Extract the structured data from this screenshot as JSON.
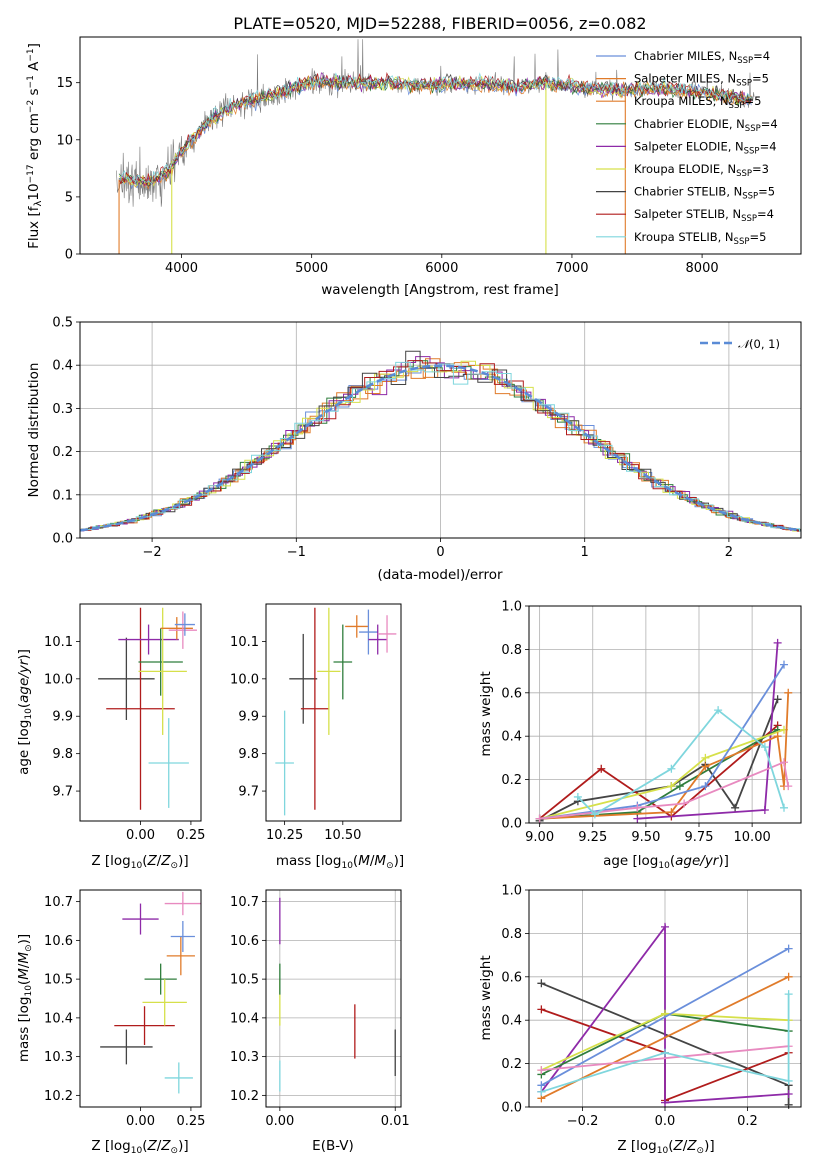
{
  "figure": {
    "title": "PLATE=0520, MJD=52288, FIBERID=0056, z=0.082"
  },
  "chart_data": [
    {
      "id": "spectrum",
      "type": "line",
      "title": "PLATE=0520, MJD=52288, FIBERID=0056, z=0.082",
      "xlabel": "wavelength [Angstrom, rest frame]",
      "ylabel": "Flux [f_λ 10^-17 erg cm^-2 s^-1 A^-1]",
      "xlim": [
        3220,
        8760
      ],
      "ylim": [
        0,
        19
      ],
      "xticks": [
        4000,
        5000,
        6000,
        7000,
        8000
      ],
      "yticks": [
        0,
        5,
        10,
        15
      ],
      "grid": false,
      "legend_position": "right",
      "legend": [
        {
          "name": "Chabrier MILES, N_SSP=4",
          "color": "#6a8fdb"
        },
        {
          "name": "Salpeter MILES, N_SSP=5",
          "color": "#e07b2a"
        },
        {
          "name": "Kroupa MILES, N_SSP=5",
          "color": "#e07b2a"
        },
        {
          "name": "Chabrier ELODIE, N_SSP=4",
          "color": "#2f7d3c"
        },
        {
          "name": "Salpeter ELODIE, N_SSP=4",
          "color": "#8e2aa8"
        },
        {
          "name": "Kroupa ELODIE, N_SSP=3",
          "color": "#d6e04a"
        },
        {
          "name": "Chabrier STELIB, N_SSP=5",
          "color": "#444444"
        },
        {
          "name": "Salpeter STELIB, N_SSP=4",
          "color": "#b01c1c"
        },
        {
          "name": "Kroupa STELIB, N_SSP=5",
          "color": "#7fd6dd"
        }
      ],
      "continuum": {
        "x": [
          3500,
          3600,
          3750,
          3900,
          4000,
          4100,
          4200,
          4300,
          4400,
          4500,
          4600,
          4700,
          4800,
          5000,
          5200,
          5400,
          5600,
          5800,
          6000,
          6200,
          6400,
          6600,
          6800,
          7000,
          7200,
          7400,
          7600,
          7800,
          8000,
          8200,
          8400
        ],
        "y": [
          6.5,
          6.5,
          6.3,
          7.2,
          9.0,
          10.2,
          11.6,
          12.4,
          13.0,
          13.3,
          13.6,
          14.0,
          14.3,
          15.1,
          15.0,
          15.0,
          15.0,
          14.8,
          14.8,
          14.9,
          14.9,
          14.6,
          15.0,
          14.7,
          14.4,
          14.3,
          14.5,
          14.4,
          14.2,
          13.8,
          13.4
        ]
      }
    },
    {
      "id": "residual-histogram",
      "type": "line",
      "xlabel": "(data-model)/error",
      "ylabel": "Normed distribution",
      "xlim": [
        -2.5,
        2.5
      ],
      "ylim": [
        0,
        0.5
      ],
      "xticks": [
        -2,
        -1,
        0,
        1,
        2
      ],
      "yticks": [
        0.0,
        0.1,
        0.2,
        0.3,
        0.4,
        0.5
      ],
      "grid": true,
      "legend": [
        {
          "name": "N(0,1)",
          "color": "#5a8bd6",
          "style": "dashed"
        }
      ],
      "legend_position": "top-right"
    },
    {
      "id": "age-vs-z",
      "type": "scatter",
      "xlabel": "Z [log10(Z/Z☉)]",
      "ylabel": "age [log10(age/yr)]",
      "xlim": [
        -0.3,
        0.3
      ],
      "ylim": [
        9.62,
        10.2
      ],
      "xticks": [
        0.0,
        0.25
      ],
      "yticks": [
        9.7,
        9.8,
        9.9,
        10.0,
        10.1
      ],
      "points": [
        {
          "x": -0.07,
          "y": 10.0,
          "xerr": 0.14,
          "yerr": 0.11,
          "color": "#444444"
        },
        {
          "x": 0.0,
          "y": 9.92,
          "xerr": 0.17,
          "yerr": 0.27,
          "color": "#b01c1c"
        },
        {
          "x": 0.04,
          "y": 10.105,
          "xerr": 0.15,
          "yerr": 0.04,
          "color": "#8e2aa8"
        },
        {
          "x": 0.1,
          "y": 10.045,
          "xerr": 0.11,
          "yerr": 0.09,
          "color": "#2f7d3c"
        },
        {
          "x": 0.11,
          "y": 10.02,
          "xerr": 0.12,
          "yerr": 0.17,
          "color": "#d6e04a"
        },
        {
          "x": 0.18,
          "y": 10.135,
          "xerr": 0.08,
          "yerr": 0.03,
          "color": "#e07b2a"
        },
        {
          "x": 0.21,
          "y": 10.13,
          "xerr": 0.07,
          "yerr": 0.05,
          "color": "#e88ac0"
        },
        {
          "x": 0.22,
          "y": 10.145,
          "xerr": 0.05,
          "yerr": 0.03,
          "color": "#6a8fdb"
        },
        {
          "x": 0.14,
          "y": 9.775,
          "xerr": 0.1,
          "yerr": 0.12,
          "color": "#7fd6dd"
        }
      ]
    },
    {
      "id": "age-vs-mass",
      "type": "scatter",
      "xlabel": "mass [log10(M/M☉)]",
      "ylabel": "",
      "xlim": [
        10.17,
        10.75
      ],
      "ylim": [
        9.62,
        10.2
      ],
      "xticks": [
        10.25,
        10.5
      ],
      "yticks": [
        9.7,
        9.8,
        9.9,
        10.0,
        10.1
      ],
      "points": [
        {
          "x": 10.33,
          "y": 10.0,
          "xerr": 0.06,
          "yerr": 0.12,
          "color": "#444444"
        },
        {
          "x": 10.38,
          "y": 9.92,
          "xerr": 0.06,
          "yerr": 0.27,
          "color": "#b01c1c"
        },
        {
          "x": 10.44,
          "y": 10.02,
          "xerr": 0.05,
          "yerr": 0.17,
          "color": "#d6e04a"
        },
        {
          "x": 10.5,
          "y": 10.045,
          "xerr": 0.04,
          "yerr": 0.1,
          "color": "#2f7d3c"
        },
        {
          "x": 10.25,
          "y": 9.775,
          "xerr": 0.04,
          "yerr": 0.14,
          "color": "#7fd6dd"
        },
        {
          "x": 10.56,
          "y": 10.14,
          "xerr": 0.05,
          "yerr": 0.03,
          "color": "#e07b2a"
        },
        {
          "x": 10.61,
          "y": 10.125,
          "xerr": 0.04,
          "yerr": 0.06,
          "color": "#6a8fdb"
        },
        {
          "x": 10.65,
          "y": 10.105,
          "xerr": 0.04,
          "yerr": 0.04,
          "color": "#8e2aa8"
        },
        {
          "x": 10.69,
          "y": 10.12,
          "xerr": 0.04,
          "yerr": 0.05,
          "color": "#e88ac0"
        }
      ]
    },
    {
      "id": "massweight-vs-age",
      "type": "line",
      "xlabel": "age [log10(age/yr)]",
      "ylabel": "mass weight",
      "xlim": [
        8.95,
        10.23
      ],
      "ylim": [
        0,
        1
      ],
      "xticks": [
        9.0,
        9.25,
        9.5,
        9.75,
        10.0
      ],
      "yticks": [
        0.0,
        0.2,
        0.4,
        0.6,
        0.8,
        1.0
      ],
      "grid": true,
      "series": [
        {
          "color": "#444444",
          "x": [
            9.0,
            9.18,
            9.62,
            9.78,
            9.92,
            10.12
          ],
          "y": [
            0.01,
            0.1,
            0.17,
            0.27,
            0.07,
            0.57
          ]
        },
        {
          "color": "#b01c1c",
          "x": [
            9.0,
            9.29,
            9.62,
            10.12
          ],
          "y": [
            0.02,
            0.25,
            0.03,
            0.45
          ]
        },
        {
          "color": "#8e2aa8",
          "x": [
            9.46,
            10.06,
            10.12
          ],
          "y": [
            0.02,
            0.06,
            0.83
          ]
        },
        {
          "color": "#2f7d3c",
          "x": [
            9.0,
            9.46,
            9.66,
            10.12
          ],
          "y": [
            0.02,
            0.05,
            0.17,
            0.43
          ]
        },
        {
          "color": "#d6e04a",
          "x": [
            9.0,
            9.62,
            9.78,
            10.15
          ],
          "y": [
            0.02,
            0.17,
            0.3,
            0.43
          ]
        },
        {
          "color": "#e07b2a",
          "x": [
            9.0,
            9.62,
            9.78,
            10.12,
            10.15,
            10.17
          ],
          "y": [
            0.02,
            0.05,
            0.26,
            0.4,
            0.17,
            0.6
          ]
        },
        {
          "color": "#6a8fdb",
          "x": [
            9.0,
            9.46,
            9.78,
            10.15
          ],
          "y": [
            0.02,
            0.08,
            0.17,
            0.73
          ]
        },
        {
          "color": "#e88ac0",
          "x": [
            9.0,
            9.46,
            9.68,
            10.15,
            10.17
          ],
          "y": [
            0.02,
            0.07,
            0.09,
            0.28,
            0.17
          ]
        },
        {
          "color": "#7fd6dd",
          "x": [
            9.18,
            9.26,
            9.62,
            9.84,
            10.06,
            10.15
          ],
          "y": [
            0.12,
            0.04,
            0.25,
            0.52,
            0.35,
            0.07
          ]
        }
      ]
    },
    {
      "id": "mass-vs-z",
      "type": "scatter",
      "xlabel": "Z [log10(Z/Z☉)]",
      "ylabel": "mass [log10(M/M☉)]",
      "xlim": [
        -0.3,
        0.3
      ],
      "ylim": [
        10.17,
        10.73
      ],
      "xticks": [
        0.0,
        0.25
      ],
      "yticks": [
        10.2,
        10.3,
        10.4,
        10.5,
        10.6,
        10.7
      ],
      "points": [
        {
          "x": -0.07,
          "y": 10.325,
          "xerr": 0.13,
          "yerr": 0.045,
          "color": "#444444"
        },
        {
          "x": 0.02,
          "y": 10.38,
          "xerr": 0.15,
          "yerr": 0.05,
          "color": "#b01c1c"
        },
        {
          "x": 0.0,
          "y": 10.655,
          "xerr": 0.09,
          "yerr": 0.04,
          "color": "#8e2aa8"
        },
        {
          "x": 0.1,
          "y": 10.5,
          "xerr": 0.08,
          "yerr": 0.04,
          "color": "#2f7d3c"
        },
        {
          "x": 0.12,
          "y": 10.44,
          "xerr": 0.11,
          "yerr": 0.06,
          "color": "#d6e04a"
        },
        {
          "x": 0.21,
          "y": 10.695,
          "xerr": 0.09,
          "yerr": 0.03,
          "color": "#e88ac0"
        },
        {
          "x": 0.2,
          "y": 10.56,
          "xerr": 0.07,
          "yerr": 0.05,
          "color": "#e07b2a"
        },
        {
          "x": 0.21,
          "y": 10.61,
          "xerr": 0.06,
          "yerr": 0.04,
          "color": "#6a8fdb"
        },
        {
          "x": 0.19,
          "y": 10.245,
          "xerr": 0.07,
          "yerr": 0.04,
          "color": "#7fd6dd"
        }
      ]
    },
    {
      "id": "mass-vs-ebv",
      "type": "scatter",
      "xlabel": "E(B-V)",
      "ylabel": "",
      "xlim": [
        -0.0012,
        0.0105
      ],
      "ylim": [
        10.17,
        10.73
      ],
      "xticks": [
        0.0,
        0.01
      ],
      "yticks": [
        10.2,
        10.3,
        10.4,
        10.5,
        10.6,
        10.7
      ],
      "grid": true,
      "points": [
        {
          "x": 0.0,
          "y": 10.65,
          "xerr": 0.0,
          "yerr": 0.06,
          "color": "#8e2aa8"
        },
        {
          "x": 0.0,
          "y": 10.44,
          "xerr": 0.0,
          "yerr": 0.06,
          "color": "#d6e04a"
        },
        {
          "x": 0.0,
          "y": 10.5,
          "xerr": 0.0,
          "yerr": 0.04,
          "color": "#2f7d3c"
        },
        {
          "x": 0.0,
          "y": 10.25,
          "xerr": 0.0,
          "yerr": 0.04,
          "color": "#7fd6dd"
        },
        {
          "x": 0.0065,
          "y": 10.365,
          "xerr": 0.0,
          "yerr": 0.07,
          "color": "#b01c1c"
        },
        {
          "x": 0.01,
          "y": 10.31,
          "xerr": 0.0,
          "yerr": 0.06,
          "color": "#444444"
        }
      ]
    },
    {
      "id": "massweight-vs-z",
      "type": "line",
      "xlabel": "Z [log10(Z/Z☉)]",
      "ylabel": "mass weight",
      "xlim": [
        -0.33,
        0.33
      ],
      "ylim": [
        0,
        1
      ],
      "xticks": [
        -0.2,
        0.0,
        0.2
      ],
      "yticks": [
        0.0,
        0.2,
        0.4,
        0.6,
        0.8,
        1.0
      ],
      "grid": true,
      "series": [
        {
          "color": "#444444",
          "x": [
            -0.3,
            0.3,
            0.3
          ],
          "y": [
            0.57,
            0.1,
            0.01
          ]
        },
        {
          "color": "#b01c1c",
          "x": [
            -0.3,
            0.0,
            0.0,
            0.3
          ],
          "y": [
            0.45,
            0.25,
            0.03,
            0.25
          ]
        },
        {
          "color": "#8e2aa8",
          "x": [
            -0.3,
            0.0,
            0.0,
            0.3
          ],
          "y": [
            0.07,
            0.83,
            0.02,
            0.06
          ]
        },
        {
          "color": "#2f7d3c",
          "x": [
            -0.3,
            0.0,
            0.3
          ],
          "y": [
            0.15,
            0.43,
            0.35
          ]
        },
        {
          "color": "#d6e04a",
          "x": [
            -0.3,
            0.0,
            0.3
          ],
          "y": [
            0.17,
            0.43,
            0.4
          ]
        },
        {
          "color": "#e07b2a",
          "x": [
            -0.3,
            0.3
          ],
          "y": [
            0.04,
            0.6
          ]
        },
        {
          "color": "#6a8fdb",
          "x": [
            -0.3,
            0.3
          ],
          "y": [
            0.1,
            0.73
          ]
        },
        {
          "color": "#e88ac0",
          "x": [
            -0.3,
            0.3
          ],
          "y": [
            0.17,
            0.28
          ]
        },
        {
          "color": "#7fd6dd",
          "x": [
            -0.3,
            0.0,
            0.3,
            0.3
          ],
          "y": [
            0.07,
            0.25,
            0.12,
            0.52
          ]
        }
      ]
    }
  ]
}
